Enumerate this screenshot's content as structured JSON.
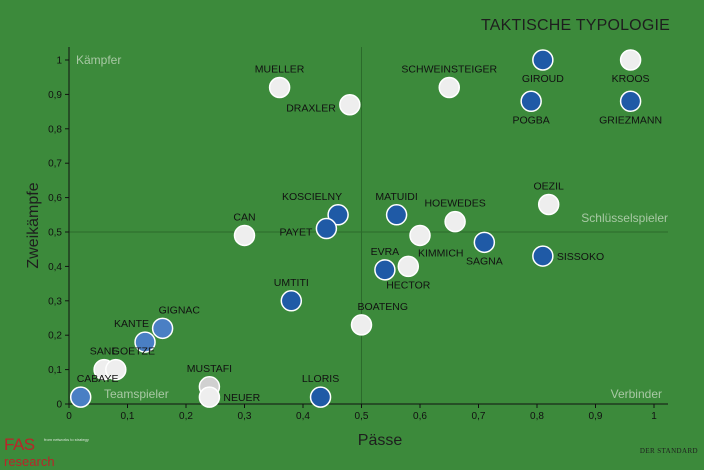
{
  "page_title": "TAKTISCHE TYPOLOGIE",
  "logo": {
    "main": "FAS",
    "sub": "research",
    "tagline": "from networks to strategy"
  },
  "credit": "DER STANDARD",
  "colors": {
    "background": "#3c8a3b",
    "dark_point": "#1f5aa6",
    "mid_point": "#4a7fc4",
    "light_point": "#eeeeee",
    "grey_point": "#d0d0d0",
    "quadrant_label": "#a9c9a5"
  },
  "chart_data": {
    "type": "scatter",
    "title": "TAKTISCHE TYPOLOGIE",
    "xlabel": "Pässe",
    "ylabel": "Zweikämpfe",
    "xlim": [
      0,
      1.05
    ],
    "ylim": [
      0,
      1.05
    ],
    "xticks": [
      "0",
      "0,1",
      "0,2",
      "0,3",
      "0,4",
      "0,5",
      "0,6",
      "0,7",
      "0,8",
      "0,9",
      "1"
    ],
    "yticks": [
      "0",
      "0,1",
      "0,2",
      "0,3",
      "0,4",
      "0,5",
      "0,6",
      "0,7",
      "0,8",
      "0,9",
      "1"
    ],
    "divider": {
      "x": 0.5,
      "y": 0.5
    },
    "quadrant_labels": {
      "top_left": "Kämpfer",
      "right_middle": "Schlüsselspieler",
      "bottom_left": "Teamspieler",
      "bottom_right": "Verbinder"
    },
    "points": [
      {
        "name": "MUELLER",
        "x": 0.36,
        "y": 0.92,
        "color": "light",
        "label_pos": "above"
      },
      {
        "name": "DRAXLER",
        "x": 0.48,
        "y": 0.87,
        "color": "light",
        "label_pos": "left"
      },
      {
        "name": "SCHWEINSTEIGER",
        "x": 0.65,
        "y": 0.92,
        "color": "light",
        "label_pos": "above"
      },
      {
        "name": "GIROUD",
        "x": 0.81,
        "y": 1.0,
        "color": "dark",
        "label_pos": "below"
      },
      {
        "name": "KROOS",
        "x": 0.96,
        "y": 1.0,
        "color": "light",
        "label_pos": "below"
      },
      {
        "name": "POGBA",
        "x": 0.79,
        "y": 0.88,
        "color": "dark",
        "label_pos": "below"
      },
      {
        "name": "GRIEZMANN",
        "x": 0.96,
        "y": 0.88,
        "color": "dark",
        "label_pos": "below"
      },
      {
        "name": "OEZIL",
        "x": 0.82,
        "y": 0.58,
        "color": "light",
        "label_pos": "above"
      },
      {
        "name": "KOSCIELNY",
        "x": 0.46,
        "y": 0.55,
        "color": "dark",
        "label_pos": "above-left"
      },
      {
        "name": "PAYET",
        "x": 0.44,
        "y": 0.51,
        "color": "dark",
        "label_pos": "left"
      },
      {
        "name": "MATUIDI",
        "x": 0.56,
        "y": 0.55,
        "color": "dark",
        "label_pos": "above"
      },
      {
        "name": "HOEWEDES",
        "x": 0.66,
        "y": 0.53,
        "color": "light",
        "label_pos": "above"
      },
      {
        "name": "CAN",
        "x": 0.3,
        "y": 0.49,
        "color": "light",
        "label_pos": "above"
      },
      {
        "name": "KIMMICH",
        "x": 0.6,
        "y": 0.49,
        "color": "light",
        "label_pos": "below-right"
      },
      {
        "name": "SAGNA",
        "x": 0.71,
        "y": 0.47,
        "color": "dark",
        "label_pos": "below"
      },
      {
        "name": "SISSOKO",
        "x": 0.81,
        "y": 0.43,
        "color": "dark",
        "label_pos": "right"
      },
      {
        "name": "EVRA",
        "x": 0.54,
        "y": 0.39,
        "color": "dark",
        "label_pos": "above"
      },
      {
        "name": "HECTOR",
        "x": 0.58,
        "y": 0.4,
        "color": "light",
        "label_pos": "below"
      },
      {
        "name": "UMTITI",
        "x": 0.38,
        "y": 0.3,
        "color": "dark",
        "label_pos": "above"
      },
      {
        "name": "BOATENG",
        "x": 0.5,
        "y": 0.23,
        "color": "light",
        "label_pos": "above-right"
      },
      {
        "name": "GIGNAC",
        "x": 0.16,
        "y": 0.22,
        "color": "mid",
        "label_pos": "above-right"
      },
      {
        "name": "KANTE",
        "x": 0.13,
        "y": 0.18,
        "color": "mid",
        "label_pos": "above-left"
      },
      {
        "name": "SANE",
        "x": 0.06,
        "y": 0.1,
        "color": "light",
        "label_pos": "above"
      },
      {
        "name": "GOETZE",
        "x": 0.08,
        "y": 0.1,
        "color": "light",
        "label_pos": "above-right"
      },
      {
        "name": "MUSTAFI",
        "x": 0.24,
        "y": 0.05,
        "color": "grey",
        "label_pos": "above"
      },
      {
        "name": "NEUER",
        "x": 0.24,
        "y": 0.02,
        "color": "light",
        "label_pos": "right"
      },
      {
        "name": "LLORIS",
        "x": 0.43,
        "y": 0.02,
        "color": "dark",
        "label_pos": "above"
      },
      {
        "name": "CABAYE",
        "x": 0.02,
        "y": 0.02,
        "color": "mid",
        "label_pos": "above-right"
      }
    ]
  }
}
